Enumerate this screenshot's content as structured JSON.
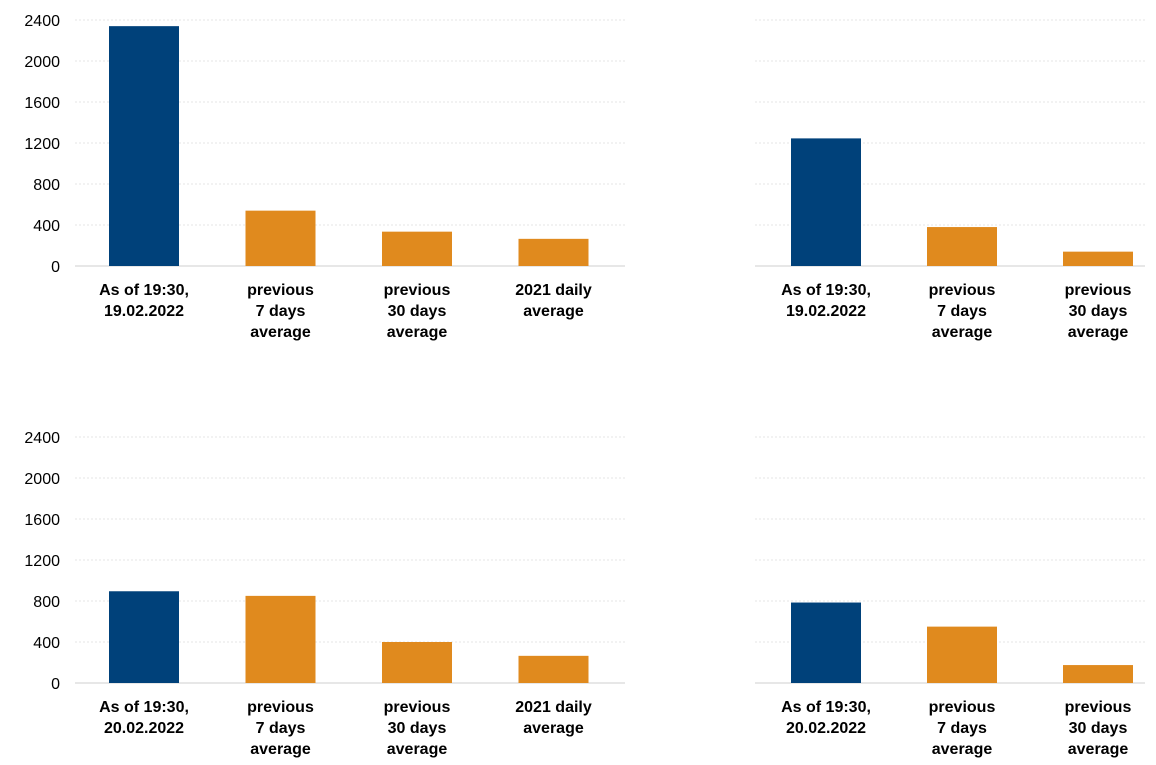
{
  "chart_data": [
    {
      "type": "bar",
      "categories": [
        "As of 19:30,\n19.02.2022",
        "previous\n7 days\naverage",
        "previous\n30 days\naverage",
        "2021 daily\naverage"
      ],
      "values": [
        2340,
        540,
        335,
        265
      ],
      "ylim": [
        0,
        2400
      ],
      "yticks": [
        0,
        400,
        800,
        1200,
        1600,
        2000,
        2400
      ],
      "grid": true
    },
    {
      "type": "bar",
      "categories": [
        "As of 19:30,\n19.02.2022",
        "previous\n7 days\naverage",
        "previous\n30 days\naverage"
      ],
      "values": [
        1245,
        380,
        140
      ],
      "ylim": [
        0,
        2400
      ],
      "grid": true
    },
    {
      "type": "bar",
      "categories": [
        "As of 19:30,\n20.02.2022",
        "previous\n7 days\naverage",
        "previous\n30 days\naverage",
        "2021 daily\naverage"
      ],
      "values": [
        895,
        850,
        400,
        265
      ],
      "ylim": [
        0,
        2400
      ],
      "yticks": [
        0,
        400,
        800,
        1200,
        1600,
        2000,
        2400
      ],
      "grid": true
    },
    {
      "type": "bar",
      "categories": [
        "As of 19:30,\n20.02.2022",
        "previous\n7 days\naverage",
        "previous\n30 days\naverage"
      ],
      "values": [
        785,
        550,
        175
      ],
      "ylim": [
        0,
        2400
      ],
      "grid": true
    }
  ],
  "colors": {
    "current": "#00417a",
    "average": "#e08a1e"
  }
}
